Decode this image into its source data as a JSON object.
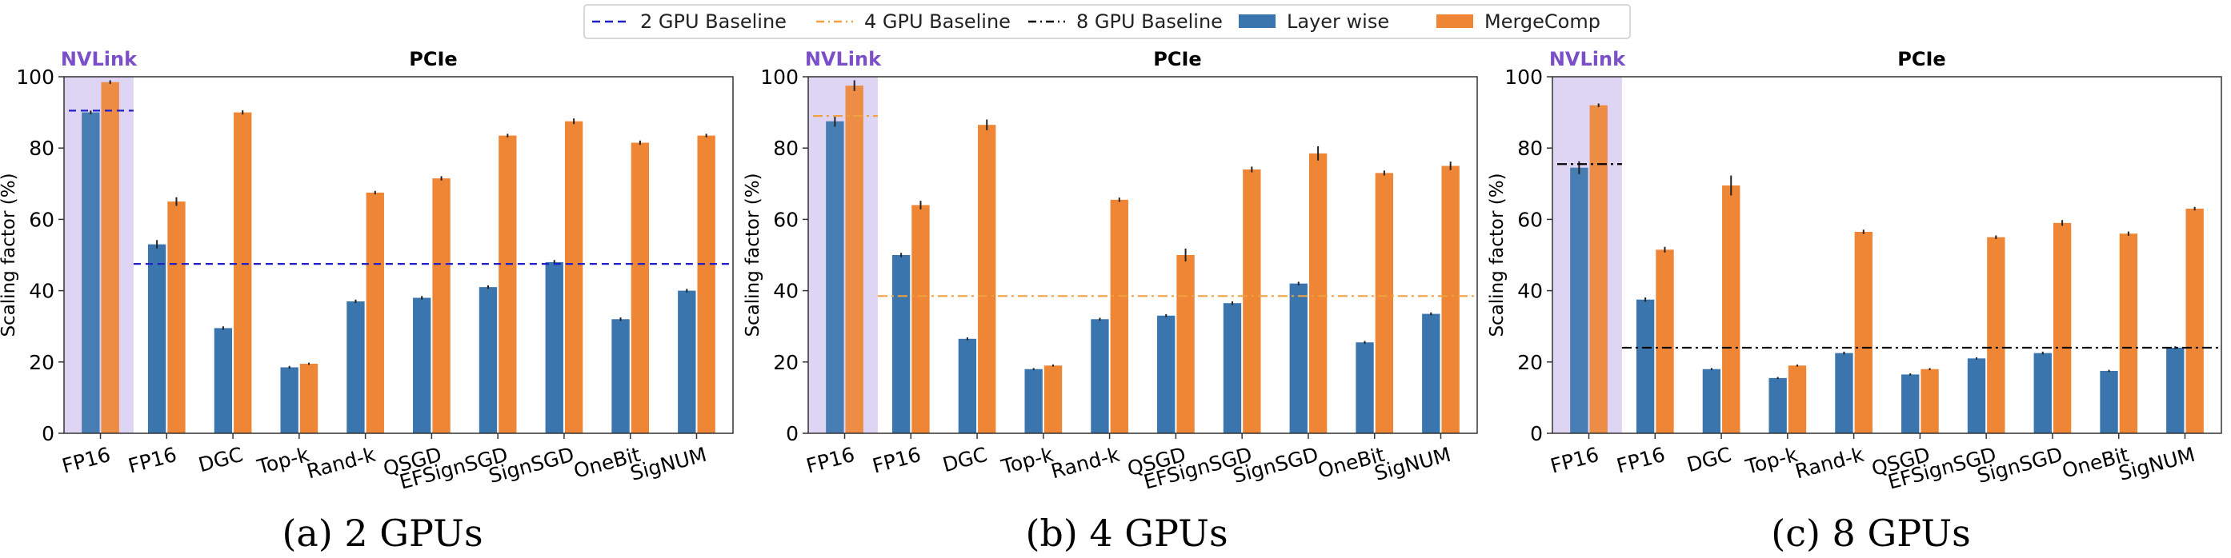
{
  "legend": {
    "placement": "top-center",
    "entries": [
      {
        "label": "2 GPU Baseline",
        "kind": "dashed-line",
        "color": "#2020c8"
      },
      {
        "label": "4 GPU Baseline",
        "kind": "dashdot-line",
        "color": "#f0a040"
      },
      {
        "label": "8 GPU Baseline",
        "kind": "dashdot-line",
        "color": "#000000"
      },
      {
        "label": "Layer wise",
        "kind": "bar",
        "color": "#3a75ae"
      },
      {
        "label": "MergeComp",
        "kind": "bar",
        "color": "#ee8636"
      }
    ]
  },
  "colors": {
    "layerwise": "#3a75ae",
    "mergecomp": "#ee8636",
    "nvlink_shade": "#ddd5f3",
    "nvlink_text": "#7b4fc8",
    "grid": "#cccccc"
  },
  "chart_data": [
    {
      "type": "bar",
      "caption": "(a) 2 GPUs",
      "ylabel": "Scaling factor (%)",
      "ylim": [
        0,
        100
      ],
      "yticks": [
        "0",
        "20",
        "40",
        "60",
        "80",
        "100"
      ],
      "section_labels": {
        "nvlink": "NVLink",
        "pcie": "PCIe"
      },
      "categories": [
        "FP16",
        "FP16",
        "DGC",
        "Top-k",
        "Rand-k",
        "QSGD",
        "EFSignSGD",
        "SignSGD",
        "OneBit",
        "SigNUM"
      ],
      "nvlink_categories": 1,
      "series": [
        {
          "name": "Layer wise",
          "values": [
            90,
            53,
            29.5,
            18.5,
            37,
            38,
            41,
            48,
            32,
            40
          ],
          "errors": [
            0.5,
            1.2,
            0.5,
            0.4,
            0.5,
            0.5,
            0.5,
            0.6,
            0.5,
            0.5
          ]
        },
        {
          "name": "MergeComp",
          "values": [
            98.5,
            65,
            90,
            19.5,
            67.5,
            71.5,
            83.5,
            87.5,
            81.5,
            83.5
          ],
          "errors": [
            0.5,
            1.2,
            0.6,
            0.3,
            0.5,
            0.6,
            0.5,
            0.8,
            0.6,
            0.5
          ]
        }
      ],
      "baselines": [
        {
          "name": "2 GPU Baseline",
          "region": "nvlink",
          "value": 90.5
        },
        {
          "name": "2 GPU Baseline",
          "region": "pcie",
          "value": 47.5
        }
      ]
    },
    {
      "type": "bar",
      "caption": "(b) 4 GPUs",
      "ylabel": "Scaling factor (%)",
      "ylim": [
        0,
        100
      ],
      "yticks": [
        "0",
        "20",
        "40",
        "60",
        "80",
        "100"
      ],
      "section_labels": {
        "nvlink": "NVLink",
        "pcie": "PCIe"
      },
      "categories": [
        "FP16",
        "FP16",
        "DGC",
        "Top-k",
        "Rand-k",
        "QSGD",
        "EFSignSGD",
        "SignSGD",
        "OneBit",
        "SigNUM"
      ],
      "nvlink_categories": 1,
      "series": [
        {
          "name": "Layer wise",
          "values": [
            87.5,
            50,
            26.5,
            18,
            32,
            33,
            36.5,
            42,
            25.5,
            33.5
          ],
          "errors": [
            1.5,
            0.6,
            0.4,
            0.3,
            0.4,
            0.4,
            0.5,
            0.5,
            0.4,
            0.4
          ]
        },
        {
          "name": "MergeComp",
          "values": [
            97.5,
            64,
            86.5,
            19,
            65.5,
            50,
            74,
            78.5,
            73,
            75
          ],
          "errors": [
            1.5,
            1.2,
            1.5,
            0.3,
            0.6,
            1.8,
            0.8,
            2,
            0.7,
            1.2
          ]
        }
      ],
      "baselines": [
        {
          "name": "4 GPU Baseline",
          "region": "nvlink",
          "value": 89
        },
        {
          "name": "4 GPU Baseline",
          "region": "pcie",
          "value": 38.5
        }
      ]
    },
    {
      "type": "bar",
      "caption": "(c) 8 GPUs",
      "ylabel": "Scaling factor (%)",
      "ylim": [
        0,
        100
      ],
      "yticks": [
        "0",
        "20",
        "40",
        "60",
        "80",
        "100"
      ],
      "section_labels": {
        "nvlink": "NVLink",
        "pcie": "PCIe"
      },
      "categories": [
        "FP16",
        "FP16",
        "DGC",
        "Top-k",
        "Rand-k",
        "QSGD",
        "EFSignSGD",
        "SignSGD",
        "OneBit",
        "SigNUM"
      ],
      "nvlink_categories": 1,
      "series": [
        {
          "name": "Layer wise",
          "values": [
            74.5,
            37.5,
            18,
            15.5,
            22.5,
            16.5,
            21,
            22.5,
            17.5,
            24
          ],
          "errors": [
            1.8,
            0.6,
            0.3,
            0.3,
            0.4,
            0.3,
            0.3,
            0.4,
            0.3,
            0.4
          ]
        },
        {
          "name": "MergeComp",
          "values": [
            92,
            51.5,
            69.5,
            19,
            56.5,
            18,
            55,
            59,
            56,
            63
          ],
          "errors": [
            0.5,
            0.8,
            2.8,
            0.3,
            0.6,
            0.3,
            0.5,
            0.8,
            0.6,
            0.5
          ]
        }
      ],
      "baselines": [
        {
          "name": "8 GPU Baseline",
          "region": "nvlink",
          "value": 75.5
        },
        {
          "name": "8 GPU Baseline",
          "region": "pcie",
          "value": 24
        }
      ]
    }
  ]
}
